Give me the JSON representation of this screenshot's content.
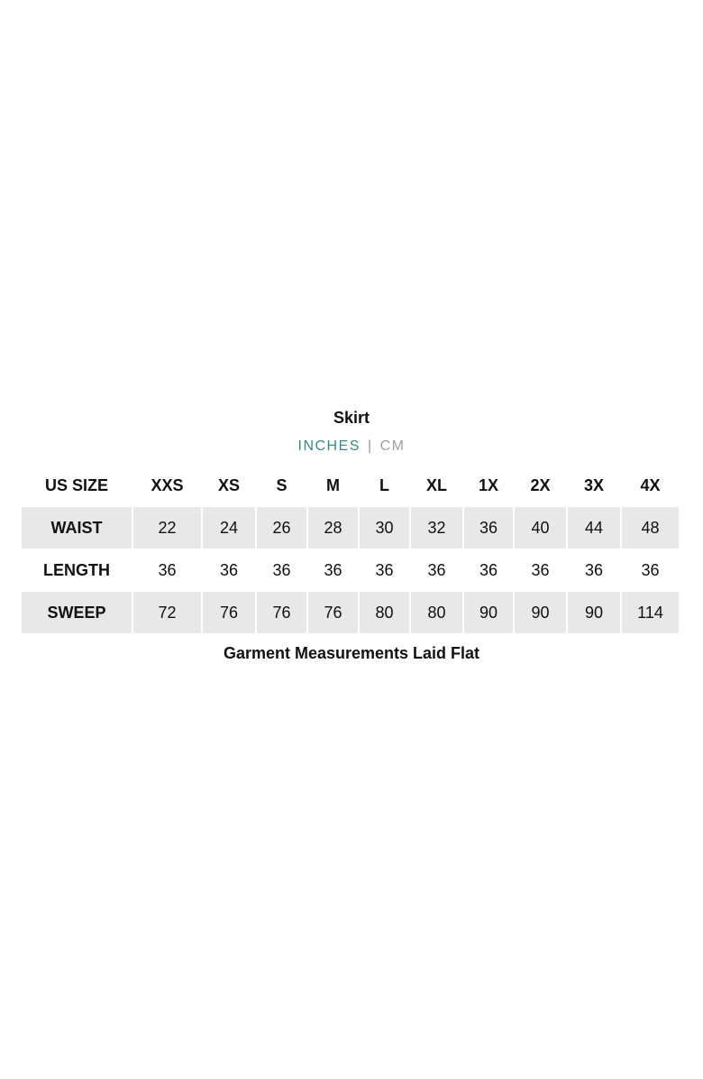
{
  "title": "Skirt",
  "units": {
    "active": "INCHES",
    "separator": "|",
    "inactive": "CM",
    "active_color": "#3a8a88"
  },
  "table": {
    "header_label": "US SIZE",
    "sizes": [
      "XXS",
      "XS",
      "S",
      "M",
      "L",
      "XL",
      "1X",
      "2X",
      "3X",
      "4X"
    ],
    "rows": [
      {
        "label": "WAIST",
        "values": [
          "22",
          "24",
          "26",
          "28",
          "30",
          "32",
          "36",
          "40",
          "44",
          "48"
        ],
        "shaded": true
      },
      {
        "label": "LENGTH",
        "values": [
          "36",
          "36",
          "36",
          "36",
          "36",
          "36",
          "36",
          "36",
          "36",
          "36"
        ],
        "shaded": false
      },
      {
        "label": "SWEEP",
        "values": [
          "72",
          "76",
          "76",
          "76",
          "80",
          "80",
          "90",
          "90",
          "90",
          "114"
        ],
        "shaded": true
      }
    ]
  },
  "footer": "Garment Measurements Laid Flat"
}
